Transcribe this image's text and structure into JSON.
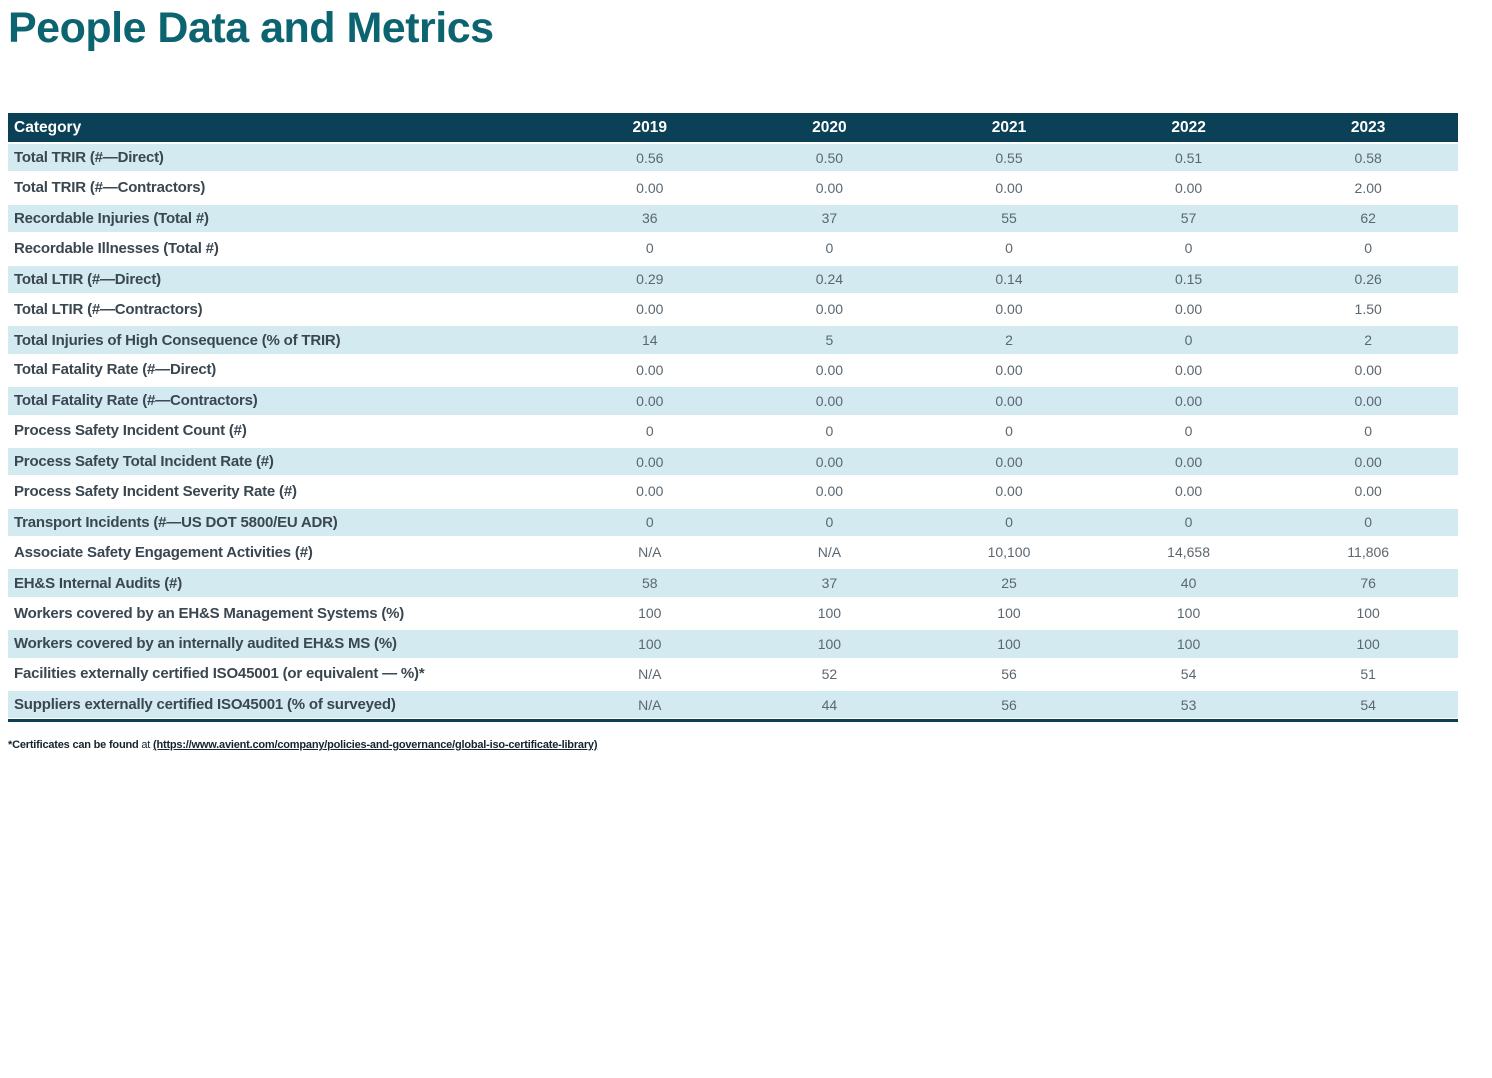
{
  "page": {
    "title": "People Data and Metrics"
  },
  "table": {
    "columns": [
      "Category",
      "2019",
      "2020",
      "2021",
      "2022",
      "2023"
    ],
    "rows": [
      {
        "label": "Total TRIR (#—Direct)",
        "values": [
          "0.56",
          "0.50",
          "0.55",
          "0.51",
          "0.58"
        ]
      },
      {
        "label": "Total TRIR (#—Contractors)",
        "values": [
          "0.00",
          "0.00",
          "0.00",
          "0.00",
          "2.00"
        ]
      },
      {
        "label": "Recordable Injuries (Total #)",
        "values": [
          "36",
          "37",
          "55",
          "57",
          "62"
        ]
      },
      {
        "label": "Recordable Illnesses (Total #)",
        "values": [
          "0",
          "0",
          "0",
          "0",
          "0"
        ]
      },
      {
        "label": "Total LTIR (#—Direct)",
        "values": [
          "0.29",
          "0.24",
          "0.14",
          "0.15",
          "0.26"
        ]
      },
      {
        "label": "Total LTIR (#—Contractors)",
        "values": [
          "0.00",
          "0.00",
          "0.00",
          "0.00",
          "1.50"
        ]
      },
      {
        "label": "Total Injuries of High Consequence (% of TRIR)",
        "values": [
          "14",
          "5",
          "2",
          "0",
          "2"
        ]
      },
      {
        "label": "Total Fatality Rate (#—Direct)",
        "values": [
          "0.00",
          "0.00",
          "0.00",
          "0.00",
          "0.00"
        ]
      },
      {
        "label": "Total Fatality Rate (#—Contractors)",
        "values": [
          "0.00",
          "0.00",
          "0.00",
          "0.00",
          "0.00"
        ]
      },
      {
        "label": "Process Safety Incident Count (#)",
        "values": [
          "0",
          "0",
          "0",
          "0",
          "0"
        ]
      },
      {
        "label": "Process Safety Total Incident Rate (#)",
        "values": [
          "0.00",
          "0.00",
          "0.00",
          "0.00",
          "0.00"
        ]
      },
      {
        "label": "Process Safety Incident Severity Rate (#)",
        "values": [
          "0.00",
          "0.00",
          "0.00",
          "0.00",
          "0.00"
        ]
      },
      {
        "label": "Transport Incidents (#—US DOT 5800/EU ADR)",
        "values": [
          "0",
          "0",
          "0",
          "0",
          "0"
        ]
      },
      {
        "label": "Associate Safety Engagement Activities (#)",
        "values": [
          "N/A",
          "N/A",
          "10,100",
          "14,658",
          "11,806"
        ]
      },
      {
        "label": "EH&S Internal Audits (#)",
        "values": [
          "58",
          "37",
          "25",
          "40",
          "76"
        ]
      },
      {
        "label": "Workers covered by an EH&S Management Systems (%)",
        "values": [
          "100",
          "100",
          "100",
          "100",
          "100"
        ]
      },
      {
        "label": "Workers covered by an internally audited EH&S MS (%)",
        "values": [
          "100",
          "100",
          "100",
          "100",
          "100"
        ]
      },
      {
        "label": "Facilities externally certified ISO45001 (or equivalent — %)*",
        "values": [
          "N/A",
          "52",
          "56",
          "54",
          "51"
        ]
      },
      {
        "label": "Suppliers externally certified ISO45001 (% of surveyed)",
        "values": [
          "N/A",
          "44",
          "56",
          "53",
          "54"
        ]
      }
    ]
  },
  "footnote": {
    "prefix": "*Certificates can be found",
    "middle": " at ",
    "link": "(https://www.avient.com/company/policies-and-governance/global-iso-certificate-library)"
  },
  "colors": {
    "title": "#0D6471",
    "header_bg": "#0B4156",
    "row_alt_bg": "#D3EAF1",
    "label_text": "#3A4750",
    "value_text": "#5B6770",
    "footnote_text": "#15242E"
  }
}
